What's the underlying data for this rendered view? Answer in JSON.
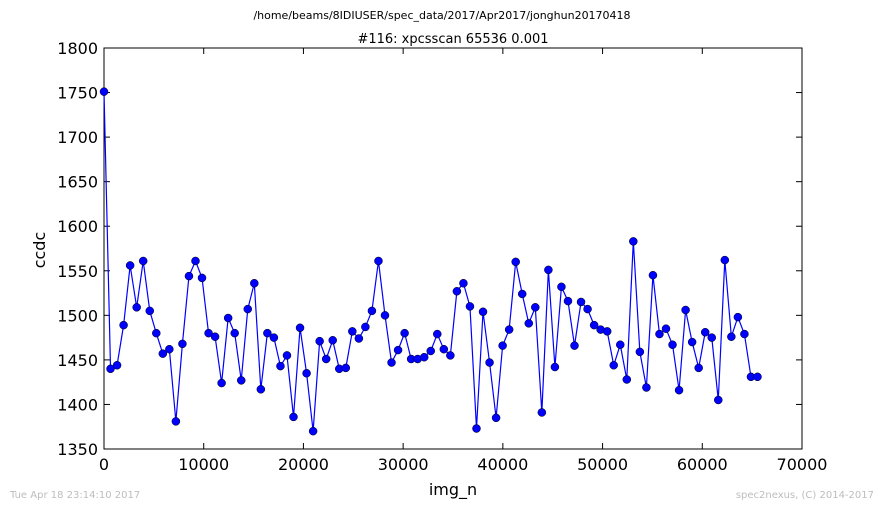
{
  "header": {
    "path": "/home/beams/8IDIUSER/spec_data/2017/Apr2017/jonghun20170418",
    "scan_title": "#116: xpcsscan 65536 0.001"
  },
  "footer": {
    "timestamp": "Tue Apr 18 23:14:10 2017",
    "credit": "spec2nexus, (C) 2014-2017"
  },
  "chart_data": {
    "type": "line",
    "title": "#116: xpcsscan 65536 0.001",
    "xlabel": "img_n",
    "ylabel": "ccdc",
    "xlim": [
      0,
      70000
    ],
    "ylim": [
      1350,
      1800
    ],
    "xticks": [
      0,
      10000,
      20000,
      30000,
      40000,
      50000,
      60000,
      70000
    ],
    "yticks": [
      1350,
      1400,
      1450,
      1500,
      1550,
      1600,
      1650,
      1700,
      1750,
      1800
    ],
    "xtick_labels": [
      "0",
      "10000",
      "20000",
      "30000",
      "40000",
      "50000",
      "60000",
      "70000"
    ],
    "ytick_labels": [
      "1350",
      "1400",
      "1450",
      "1500",
      "1550",
      "1600",
      "1650",
      "1700",
      "1750",
      "1800"
    ],
    "grid": false,
    "line_color": "#0000ff",
    "marker": "circle",
    "series": [
      {
        "x": [
          0,
          655,
          1311,
          1966,
          2621,
          3277,
          3932,
          4588,
          5243,
          5898,
          6554,
          7209,
          7864,
          8520,
          9175,
          9830,
          10486,
          11141,
          11796,
          12452,
          13107,
          13763,
          14418,
          15073,
          15729,
          16384,
          17039,
          17695,
          18350,
          19005,
          19661,
          20316,
          20972,
          21627,
          22282,
          22938,
          23593,
          24248,
          24904,
          25559,
          26214,
          26870,
          27525,
          28180,
          28836,
          29491,
          30147,
          30802,
          31457,
          32113,
          32768,
          33423,
          34079,
          34734,
          35389,
          36045,
          36700,
          37356,
          38011,
          38666,
          39322,
          39977,
          40632,
          41288,
          41943,
          42598,
          43254,
          43909,
          44565,
          45220,
          45875,
          46531,
          47186,
          47841,
          48497,
          49152,
          49807,
          50463,
          51118,
          51774,
          52429,
          53084,
          53740,
          54395,
          55050,
          55706,
          56361,
          57016,
          57672,
          58327,
          58983,
          59638,
          60293,
          60949,
          61604,
          62259,
          62915,
          63570,
          64225,
          64881,
          65536
        ],
        "y": [
          1751,
          1440,
          1444,
          1489,
          1556,
          1509,
          1561,
          1505,
          1480,
          1457,
          1462,
          1381,
          1468,
          1544,
          1561,
          1542,
          1480,
          1476,
          1424,
          1497,
          1480,
          1427,
          1507,
          1536,
          1417,
          1480,
          1475,
          1443,
          1455,
          1386,
          1486,
          1435,
          1370,
          1471,
          1451,
          1472,
          1440,
          1441,
          1482,
          1474,
          1487,
          1505,
          1561,
          1500,
          1447,
          1461,
          1480,
          1451,
          1451,
          1453,
          1460,
          1479,
          1462,
          1455,
          1527,
          1536,
          1510,
          1373,
          1504,
          1447,
          1385,
          1466,
          1484,
          1560,
          1524,
          1491,
          1509,
          1391,
          1551,
          1442,
          1532,
          1516,
          1466,
          1515,
          1507,
          1489,
          1484,
          1482,
          1444,
          1467,
          1428,
          1583,
          1459,
          1419,
          1545,
          1479,
          1485,
          1467,
          1416,
          1506,
          1470,
          1441,
          1481,
          1475,
          1405,
          1562,
          1476,
          1498,
          1479,
          1431,
          1431
        ]
      }
    ]
  }
}
